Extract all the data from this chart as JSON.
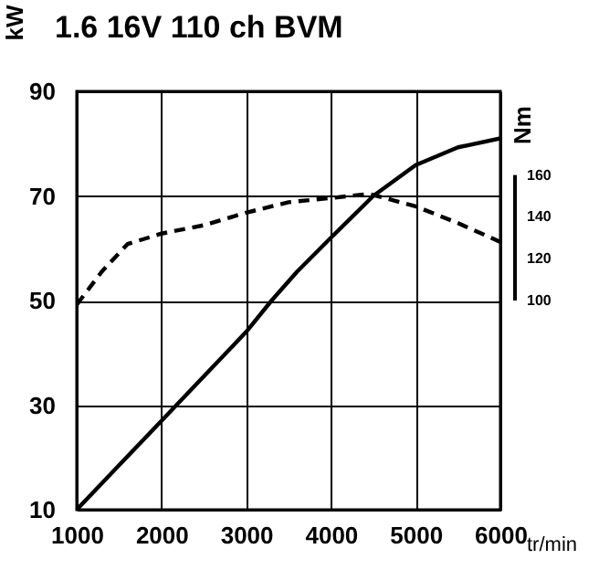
{
  "chart_data": {
    "type": "line",
    "title": "1.6 16V 110 ch BVM",
    "xlabel": "tr/min",
    "ylabel": "kW",
    "y2label": "Nm",
    "xlim": [
      1000,
      6000
    ],
    "xticks": [
      1000,
      2000,
      3000,
      4000,
      5000,
      6000
    ],
    "ylim": [
      10,
      90
    ],
    "yticks": [
      10,
      30,
      50,
      70,
      90
    ],
    "y2lim": [
      0,
      200
    ],
    "y2ticks": [
      100,
      120,
      140,
      160
    ],
    "grid": true,
    "series": [
      {
        "color": "#000000",
        "line_style": "solid",
        "x": [
          1000,
          1500,
          2000,
          2500,
          3000,
          3300,
          3600,
          4000,
          4500,
          5000,
          5500,
          6000
        ],
        "values": [
          10,
          18.5,
          27,
          35.5,
          44,
          50,
          55.5,
          62,
          70,
          75.9,
          79.3,
          81
        ]
      },
      {
        "color": "#000000",
        "line_style": "dashed",
        "axis": "y2",
        "x": [
          1000,
          1300,
          1600,
          2000,
          2500,
          3000,
          3500,
          4000,
          4450,
          5000,
          5500,
          6000
        ],
        "values": [
          98,
          114,
          127,
          132,
          136,
          142,
          147,
          149,
          151,
          145,
          137,
          128
        ]
      }
    ]
  }
}
